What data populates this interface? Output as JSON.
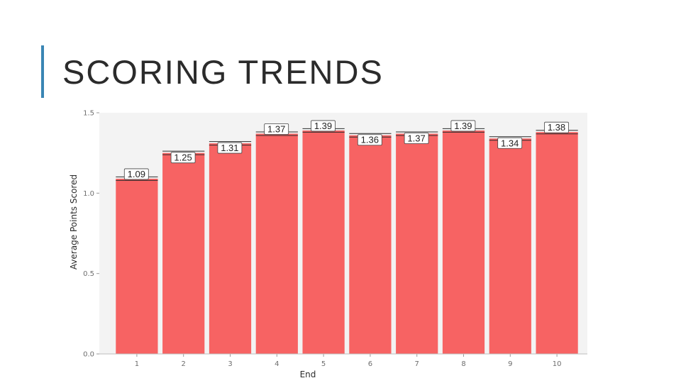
{
  "slide": {
    "title": "SCORING TRENDS",
    "accent_color": "#3a86b4"
  },
  "chart_data": {
    "type": "bar",
    "title": "",
    "xlabel": "End",
    "ylabel": "Average Points Scored",
    "categories": [
      "1",
      "2",
      "3",
      "4",
      "5",
      "6",
      "7",
      "8",
      "9",
      "10"
    ],
    "values": [
      1.09,
      1.25,
      1.31,
      1.37,
      1.39,
      1.36,
      1.37,
      1.39,
      1.34,
      1.38
    ],
    "data_labels": [
      "1.09",
      "1.25",
      "1.31",
      "1.37",
      "1.39",
      "1.36",
      "1.37",
      "1.39",
      "1.34",
      "1.38"
    ],
    "ylim": [
      0,
      1.5
    ],
    "yticks": [
      "0.0",
      "0.5",
      "1.0",
      "1.5"
    ],
    "ytick_values": [
      0,
      0.5,
      1.0,
      1.5
    ],
    "grid": false,
    "bar_color": "#f76363",
    "error_bar_color": "#2b2b2b",
    "panel_background": "#f3f3f3"
  }
}
